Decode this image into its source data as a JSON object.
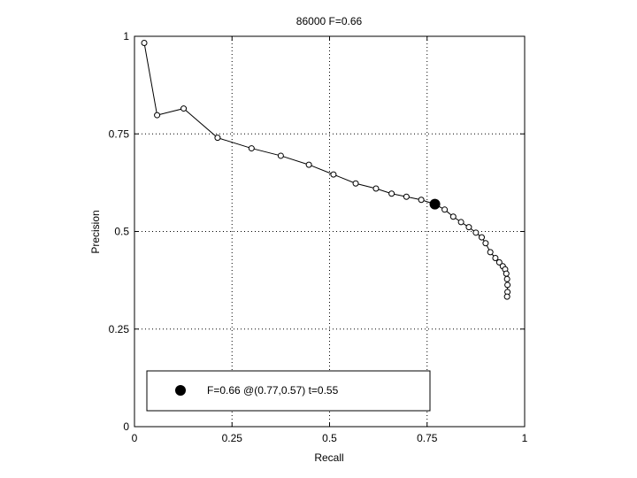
{
  "chart_data": {
    "type": "line",
    "title": "86000 F=0.66",
    "xlabel": "Recall",
    "ylabel": "Precision",
    "xlim": [
      0,
      1
    ],
    "ylim": [
      0,
      1
    ],
    "grid": true,
    "grid_style": "dotted",
    "x_ticks": [
      0,
      0.25,
      0.5,
      0.75,
      1
    ],
    "x_tick_labels": [
      "0",
      "0.25",
      "0.5",
      "0.75",
      "1"
    ],
    "y_ticks": [
      0,
      0.25,
      0.5,
      0.75,
      1
    ],
    "y_tick_labels": [
      "0",
      "0.25",
      "0.5",
      "0.75",
      "1"
    ],
    "legend_placement": "bottom-left",
    "series": [
      {
        "marker": "open-circle",
        "color": "#000000",
        "x": [
          0.025,
          0.058,
          0.126,
          0.213,
          0.3,
          0.375,
          0.447,
          0.51,
          0.567,
          0.619,
          0.659,
          0.697,
          0.735,
          0.77,
          0.795,
          0.817,
          0.837,
          0.857,
          0.875,
          0.89,
          0.9,
          0.912,
          0.925,
          0.935,
          0.944,
          0.95,
          0.953,
          0.955,
          0.956,
          0.956,
          0.955
        ],
        "y": [
          0.983,
          0.798,
          0.815,
          0.74,
          0.713,
          0.694,
          0.671,
          0.646,
          0.623,
          0.61,
          0.597,
          0.589,
          0.581,
          0.57,
          0.556,
          0.538,
          0.524,
          0.511,
          0.497,
          0.485,
          0.47,
          0.447,
          0.432,
          0.421,
          0.411,
          0.403,
          0.392,
          0.378,
          0.363,
          0.345,
          0.333
        ]
      }
    ],
    "highlight_point": {
      "x": 0.77,
      "y": 0.57,
      "marker": "filled-circle",
      "color": "#000000"
    },
    "legend": {
      "entries": [
        "F=0.66 @(0.77,0.57) t=0.55"
      ]
    }
  }
}
